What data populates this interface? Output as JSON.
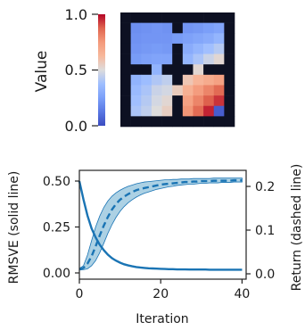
{
  "chart_data": [
    {
      "type": "heatmap",
      "colorbar": {
        "label": "Value",
        "ticks": [
          "0.0",
          "0.5",
          "1.0"
        ],
        "range": [
          0,
          1
        ],
        "colormap": "coolwarm"
      },
      "grid_size": 11,
      "wall_color": "#0d1022",
      "values": [
        [
          null,
          null,
          null,
          null,
          null,
          null,
          null,
          null,
          null,
          null,
          null
        ],
        [
          null,
          0.2,
          0.21,
          0.22,
          0.21,
          null,
          0.22,
          0.23,
          0.25,
          0.27,
          null
        ],
        [
          null,
          0.21,
          0.22,
          0.22,
          0.22,
          0.24,
          0.26,
          0.28,
          0.3,
          0.34,
          null
        ],
        [
          null,
          0.22,
          0.23,
          0.24,
          0.23,
          null,
          0.3,
          0.34,
          0.38,
          0.42,
          null
        ],
        [
          null,
          0.24,
          0.26,
          0.27,
          0.27,
          null,
          0.34,
          0.4,
          0.46,
          0.52,
          null
        ],
        [
          null,
          null,
          null,
          0.33,
          null,
          null,
          null,
          0.52,
          null,
          null,
          null
        ],
        [
          null,
          0.33,
          0.37,
          0.41,
          0.44,
          null,
          0.58,
          0.64,
          0.68,
          0.72,
          null
        ],
        [
          null,
          0.36,
          0.4,
          0.46,
          0.48,
          0.56,
          0.66,
          0.74,
          0.8,
          0.86,
          null
        ],
        [
          null,
          0.38,
          0.42,
          0.48,
          0.52,
          null,
          0.72,
          0.8,
          0.88,
          0.94,
          null
        ],
        [
          null,
          0.4,
          0.44,
          0.5,
          0.55,
          null,
          0.76,
          0.86,
          0.96,
          0.05,
          null
        ],
        [
          null,
          null,
          null,
          null,
          null,
          null,
          null,
          null,
          null,
          null,
          null
        ]
      ]
    },
    {
      "type": "line",
      "xlabel": "Iteration",
      "ylabel": "RMSVE (solid line)",
      "y2label": "Return (dashed line)",
      "xlim": [
        0,
        41
      ],
      "ylim": [
        -0.05,
        0.55
      ],
      "y2lim": [
        -0.021,
        0.231
      ],
      "xticks": [
        "0",
        "20",
        "40"
      ],
      "yticks": [
        "0.00",
        "0.25",
        "0.50"
      ],
      "y2ticks": [
        "0.0",
        "0.1",
        "0.2"
      ],
      "line_color": "#1a74b4",
      "band_color": "#7fb9d6",
      "series": [
        {
          "axis": "left",
          "style": "solid",
          "x": [
            0,
            1,
            2,
            3,
            4,
            5,
            6,
            7,
            8,
            9,
            10,
            11,
            12,
            13,
            14,
            15,
            16,
            17,
            18,
            19,
            20,
            21,
            22,
            23,
            24,
            25,
            26,
            27,
            28,
            29,
            30,
            31,
            32,
            33,
            34,
            35,
            36,
            37,
            38,
            39,
            40
          ],
          "values": [
            0.49,
            0.39,
            0.3,
            0.23,
            0.18,
            0.14,
            0.11,
            0.085,
            0.066,
            0.052,
            0.041,
            0.032,
            0.026,
            0.021,
            0.017,
            0.014,
            0.012,
            0.01,
            0.009,
            0.008,
            0.007,
            0.006,
            0.005,
            0.005,
            0.004,
            0.004,
            0.004,
            0.003,
            0.003,
            0.003,
            0.003,
            0.003,
            0.002,
            0.002,
            0.002,
            0.002,
            0.002,
            0.002,
            0.002,
            0.002,
            0.002
          ]
        },
        {
          "axis": "right",
          "style": "dashed",
          "x": [
            0,
            1,
            2,
            3,
            4,
            5,
            6,
            7,
            8,
            9,
            10,
            11,
            12,
            13,
            14,
            15,
            16,
            17,
            18,
            19,
            20,
            21,
            22,
            23,
            24,
            25,
            26,
            27,
            28,
            29,
            30,
            31,
            32,
            33,
            34,
            35,
            36,
            37,
            38,
            39,
            40
          ],
          "values": [
            0.002,
            0.005,
            0.015,
            0.032,
            0.055,
            0.08,
            0.103,
            0.123,
            0.14,
            0.153,
            0.163,
            0.17,
            0.176,
            0.181,
            0.185,
            0.188,
            0.19,
            0.192,
            0.194,
            0.196,
            0.198,
            0.199,
            0.2,
            0.201,
            0.202,
            0.203,
            0.204,
            0.204,
            0.205,
            0.205,
            0.206,
            0.206,
            0.206,
            0.207,
            0.207,
            0.207,
            0.207,
            0.207,
            0.208,
            0.208,
            0.208
          ],
          "lower": [
            0.0,
            0.001,
            0.003,
            0.01,
            0.022,
            0.04,
            0.062,
            0.085,
            0.105,
            0.122,
            0.136,
            0.147,
            0.156,
            0.163,
            0.169,
            0.174,
            0.178,
            0.181,
            0.184,
            0.187,
            0.189,
            0.191,
            0.193,
            0.194,
            0.196,
            0.197,
            0.198,
            0.199,
            0.199,
            0.2,
            0.201,
            0.201,
            0.202,
            0.202,
            0.202,
            0.203,
            0.203,
            0.203,
            0.204,
            0.204,
            0.204
          ],
          "upper": [
            0.004,
            0.01,
            0.035,
            0.068,
            0.1,
            0.125,
            0.145,
            0.16,
            0.171,
            0.179,
            0.185,
            0.19,
            0.194,
            0.197,
            0.2,
            0.202,
            0.204,
            0.205,
            0.206,
            0.207,
            0.208,
            0.209,
            0.209,
            0.21,
            0.21,
            0.211,
            0.211,
            0.211,
            0.212,
            0.212,
            0.212,
            0.212,
            0.212,
            0.213,
            0.213,
            0.213,
            0.213,
            0.213,
            0.213,
            0.213,
            0.213
          ]
        }
      ]
    }
  ]
}
